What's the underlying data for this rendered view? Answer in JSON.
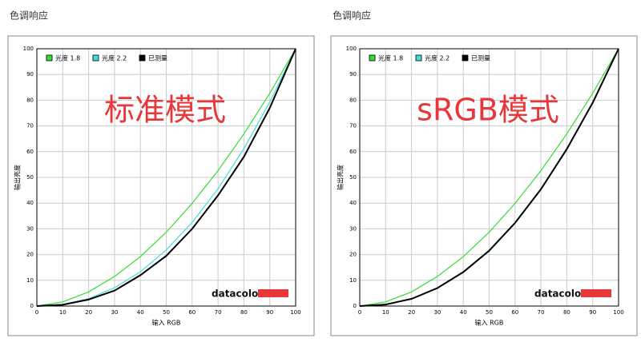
{
  "chart_data": [
    {
      "type": "line",
      "title": "色调响应",
      "xlabel": "输入 RGB",
      "ylabel": "输出亮度",
      "annotation": "标准模式",
      "logo": "datacolor",
      "x": [
        0,
        10,
        20,
        30,
        40,
        50,
        60,
        70,
        80,
        90,
        100
      ],
      "series": [
        {
          "name": "光度 1.8",
          "color": "#33dd33",
          "values": [
            0,
            1.6,
            5.5,
            11.5,
            19.2,
            28.7,
            39.9,
            52.6,
            66.9,
            82.7,
            100
          ]
        },
        {
          "name": "光度 2.2",
          "color": "#44dddd",
          "values": [
            0,
            0.6,
            2.9,
            7.1,
            13.3,
            21.8,
            32.5,
            45.6,
            61.2,
            79.3,
            100
          ]
        },
        {
          "name": "已测量",
          "color": "#000000",
          "values": [
            0,
            0.5,
            2.5,
            6,
            12,
            19.5,
            30,
            43,
            58,
            77,
            100
          ]
        }
      ],
      "xlim": [
        0,
        100
      ],
      "ylim": [
        0,
        100
      ],
      "xticks": [
        0,
        10,
        20,
        30,
        40,
        50,
        60,
        70,
        80,
        90,
        100
      ],
      "yticks": [
        0,
        10,
        20,
        30,
        40,
        50,
        60,
        70,
        80,
        90,
        100
      ],
      "grid": true
    },
    {
      "type": "line",
      "title": "色调响应",
      "xlabel": "输入 RGB",
      "ylabel": "输出亮度",
      "annotation": "sRGB模式",
      "logo": "datacolor",
      "x": [
        0,
        10,
        20,
        30,
        40,
        50,
        60,
        70,
        80,
        90,
        100
      ],
      "series": [
        {
          "name": "光度 1.8",
          "color": "#33dd33",
          "values": [
            0,
            1.6,
            5.5,
            11.5,
            19.2,
            28.7,
            39.9,
            52.6,
            66.9,
            82.7,
            100
          ]
        },
        {
          "name": "光度 2.2",
          "color": "#44dddd",
          "values": [
            0,
            0.6,
            2.9,
            7.1,
            13.3,
            21.8,
            32.5,
            45.6,
            61.2,
            79.3,
            100
          ]
        },
        {
          "name": "已测量",
          "color": "#000000",
          "values": [
            0,
            0.6,
            2.8,
            7,
            13.2,
            21.5,
            32.3,
            45.4,
            61,
            79,
            100
          ]
        }
      ],
      "xlim": [
        0,
        100
      ],
      "ylim": [
        0,
        100
      ],
      "xticks": [
        0,
        10,
        20,
        30,
        40,
        50,
        60,
        70,
        80,
        90,
        100
      ],
      "yticks": [
        0,
        10,
        20,
        30,
        40,
        50,
        60,
        70,
        80,
        90,
        100
      ],
      "grid": true
    }
  ]
}
